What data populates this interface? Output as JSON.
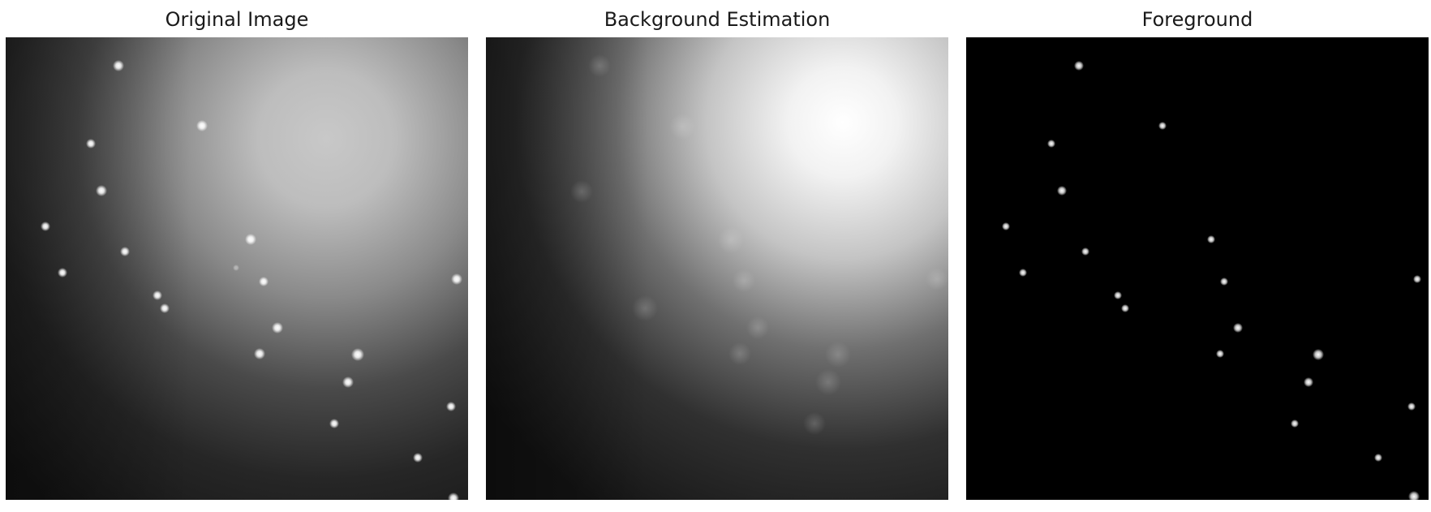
{
  "titles": {
    "original": "Original Image",
    "background": "Background Estimation",
    "foreground": "Foreground"
  },
  "colors": {
    "page_background": "#ffffff",
    "spot": "#ffffff",
    "dark": "#0d0d0d",
    "foreground_background": "#000000"
  }
}
